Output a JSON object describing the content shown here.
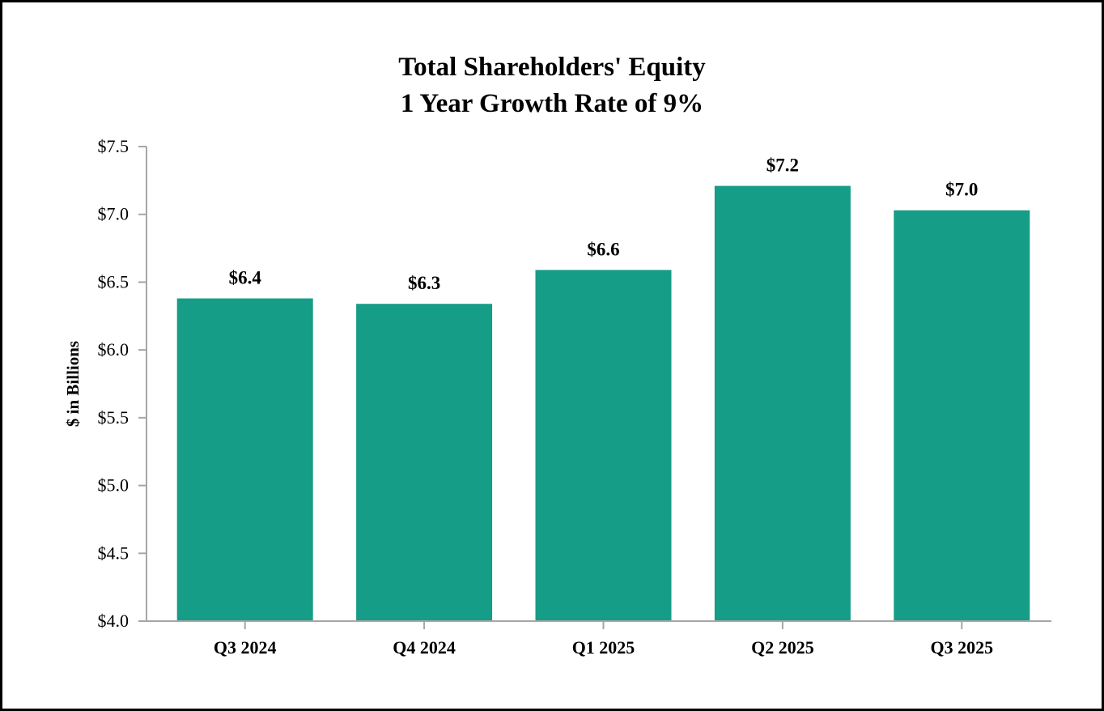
{
  "chart_data": {
    "type": "bar",
    "title": [
      "Total Shareholders' Equity",
      "1 Year Growth Rate of 9%"
    ],
    "xlabel": "",
    "ylabel": "$ in Billions",
    "categories": [
      "Q3 2024",
      "Q4 2024",
      "Q1 2025",
      "Q2 2025",
      "Q3 2025"
    ],
    "values": [
      6.38,
      6.34,
      6.59,
      7.21,
      7.03
    ],
    "data_labels": [
      "$6.4",
      "$6.3",
      "$6.6",
      "$7.2",
      "$7.0"
    ],
    "ylim": [
      4.0,
      7.5
    ],
    "yticks": [
      4.0,
      4.5,
      5.0,
      5.5,
      6.0,
      6.5,
      7.0,
      7.5
    ],
    "ytick_labels": [
      "$4.0",
      "$4.5",
      "$5.0",
      "$5.5",
      "$6.0",
      "$6.5",
      "$7.0",
      "$7.5"
    ],
    "grid": false,
    "legend": "none",
    "bar_color": "#159D87",
    "axis_color": "#A6A6A6"
  }
}
